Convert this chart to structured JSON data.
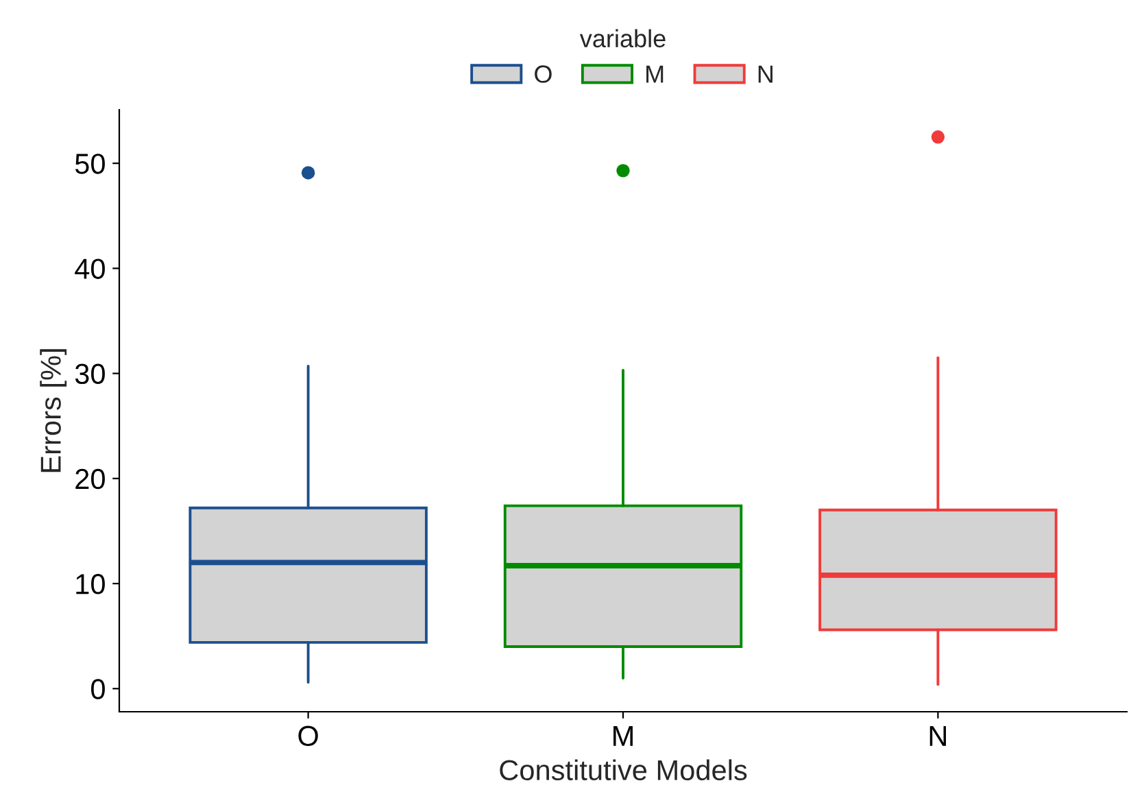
{
  "chart_data": {
    "type": "box",
    "xlabel": "Constitutive Models",
    "ylabel": "Errors [%]",
    "legend_title": "variable",
    "categories": [
      "O",
      "M",
      "N"
    ],
    "series": [
      {
        "name": "O",
        "color": "#1c4f8e",
        "boxes": [
          {
            "low": 0.6,
            "q1": 4.4,
            "median": 12.0,
            "q3": 17.2,
            "high": 30.7,
            "outliers": [
              49.1
            ]
          },
          null,
          null
        ]
      },
      {
        "name": "M",
        "color": "#008b00",
        "boxes": [
          null,
          {
            "low": 1.0,
            "q1": 4.0,
            "median": 11.7,
            "q3": 17.4,
            "high": 30.3,
            "outliers": [
              49.3
            ]
          },
          null
        ]
      },
      {
        "name": "N",
        "color": "#f03b3b",
        "boxes": [
          null,
          null,
          {
            "low": 0.4,
            "q1": 5.6,
            "median": 10.8,
            "q3": 17.0,
            "high": 31.5,
            "outliers": [
              52.5
            ]
          }
        ]
      }
    ],
    "ylim": [
      -2.2,
      55.1
    ],
    "yticks": [
      0,
      10,
      20,
      30,
      40,
      50
    ],
    "grid": false,
    "legend": "top"
  }
}
